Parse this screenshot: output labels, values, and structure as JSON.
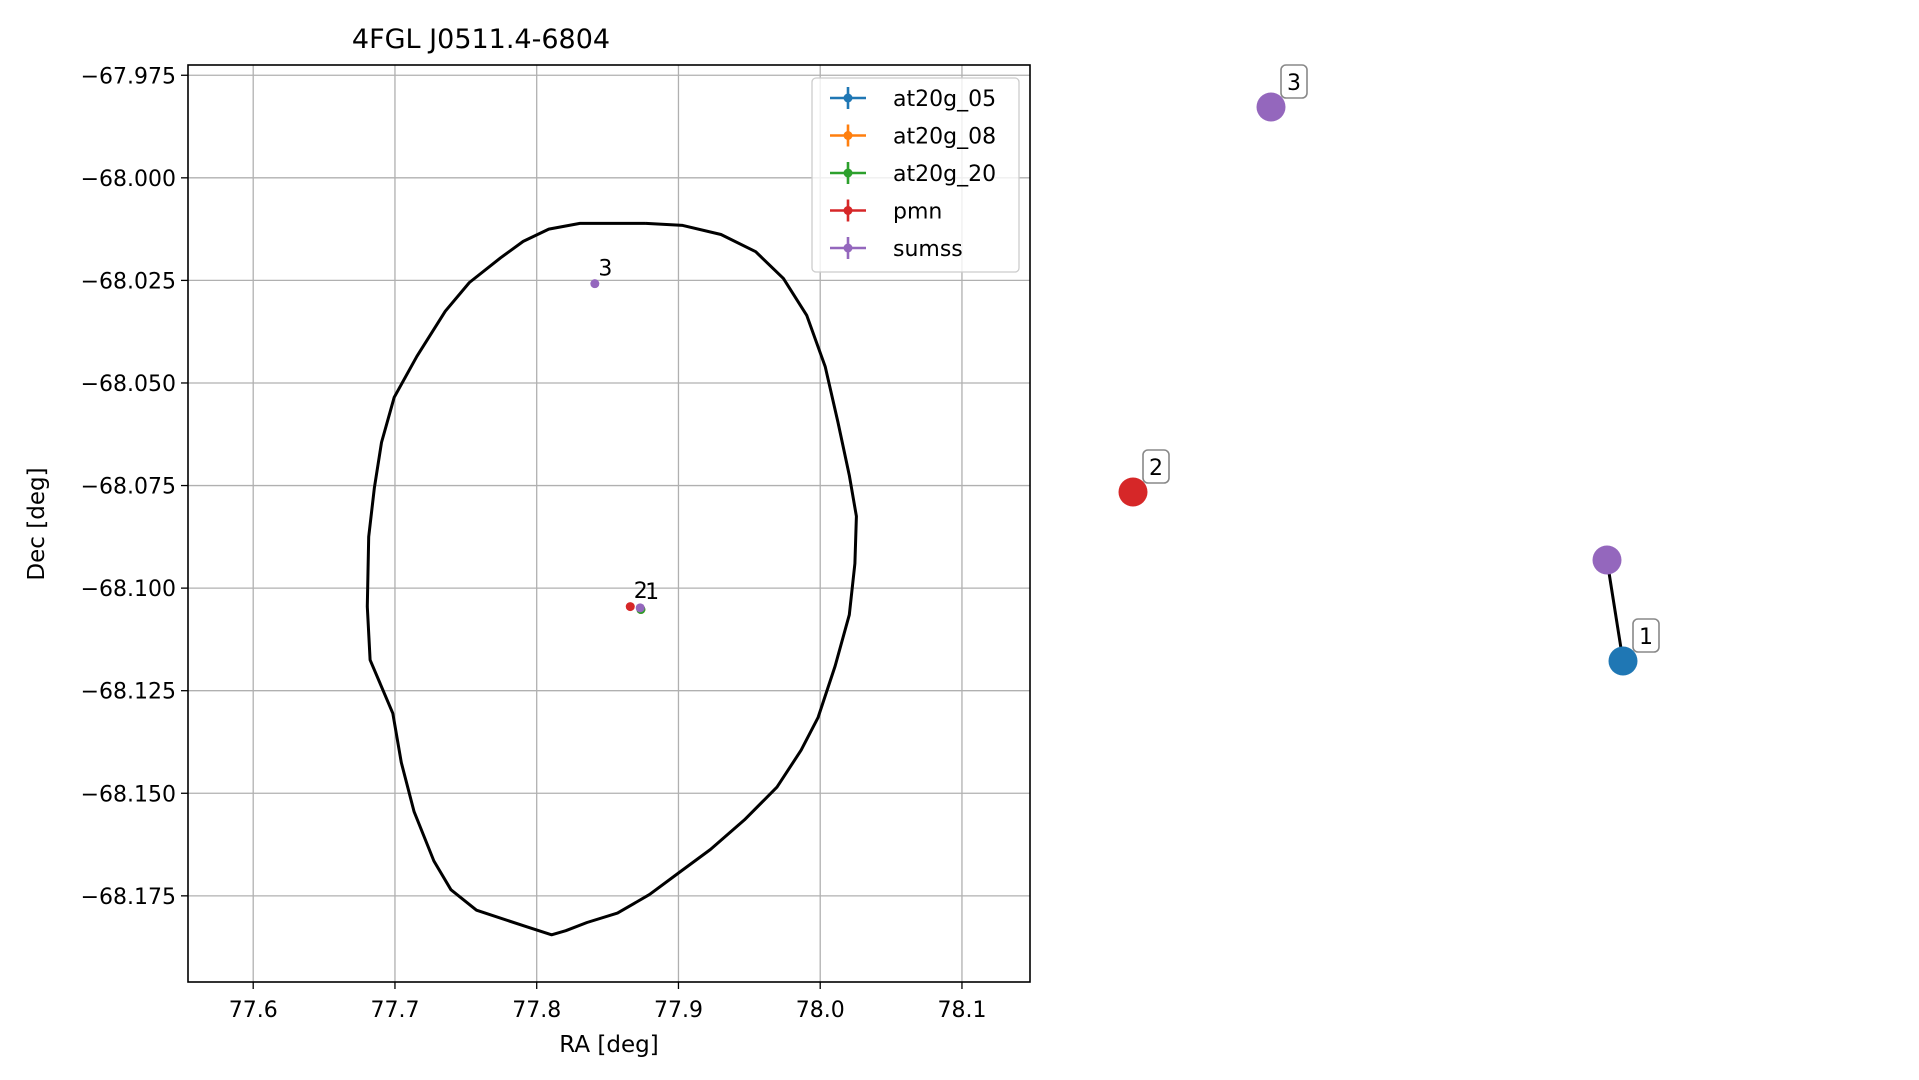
{
  "chart_data": [
    {
      "type": "scatter",
      "title": "4FGL J0511.4-6804",
      "xlabel": "RA [deg]",
      "ylabel": "Dec [deg]",
      "xlim": [
        77.554,
        78.148
      ],
      "ylim": [
        -68.196,
        -67.9725
      ],
      "xticks": [
        77.6,
        77.7,
        77.8,
        77.9,
        78.0,
        78.1
      ],
      "xtick_labels": [
        "77.6",
        "77.7",
        "77.8",
        "77.9",
        "78.0",
        "78.1"
      ],
      "yticks": [
        -67.975,
        -68.0,
        -68.025,
        -68.05,
        -68.075,
        -68.1,
        -68.125,
        -68.15,
        -68.175
      ],
      "ytick_labels": [
        "−67.975",
        "−68.000",
        "−68.025",
        "−68.050",
        "−68.075",
        "−68.100",
        "−68.125",
        "−68.150",
        "−68.175"
      ],
      "grid": true,
      "legend_position": "top-right",
      "series": [
        {
          "name": "at20g_05",
          "color": "#1f77b4",
          "points": [
            {
              "x": 77.8735,
              "y": -68.1052
            }
          ]
        },
        {
          "name": "at20g_08",
          "color": "#ff7f0e",
          "points": [
            {
              "x": 77.8735,
              "y": -68.1052
            }
          ]
        },
        {
          "name": "at20g_20",
          "color": "#2ca02c",
          "points": [
            {
              "x": 77.8735,
              "y": -68.1052
            }
          ]
        },
        {
          "name": "pmn",
          "color": "#d62728",
          "points": [
            {
              "x": 77.866,
              "y": -68.1045
            }
          ]
        },
        {
          "name": "sumss",
          "color": "#9467bd",
          "points": [
            {
              "x": 77.873,
              "y": -68.1048
            },
            {
              "x": 77.841,
              "y": -68.0258
            }
          ]
        }
      ],
      "annotations": [
        {
          "text": "1",
          "x": 77.8765,
          "y": -68.1026
        },
        {
          "text": "2",
          "x": 77.8685,
          "y": -68.1024
        },
        {
          "text": "3",
          "x": 77.8435,
          "y": -68.0238
        }
      ],
      "ellipse_outline": [
        [
          77.877,
          -68.0111
        ],
        [
          77.903,
          -68.0116
        ],
        [
          77.93,
          -68.0138
        ],
        [
          77.9545,
          -68.018
        ],
        [
          77.974,
          -68.0245
        ],
        [
          77.9905,
          -68.0335
        ],
        [
          78.0035,
          -68.046
        ],
        [
          78.0125,
          -68.0595
        ],
        [
          78.0205,
          -68.0725
        ],
        [
          78.0255,
          -68.0825
        ],
        [
          78.0245,
          -68.094
        ],
        [
          78.0205,
          -68.1065
        ],
        [
          78.0105,
          -68.119
        ],
        [
          77.9985,
          -68.1315
        ],
        [
          77.9865,
          -68.1395
        ],
        [
          77.9695,
          -68.1485
        ],
        [
          77.9465,
          -68.1565
        ],
        [
          77.9225,
          -68.1637
        ],
        [
          77.9005,
          -68.1693
        ],
        [
          77.8795,
          -68.1747
        ],
        [
          77.857,
          -68.1792
        ],
        [
          77.8355,
          -68.1815
        ],
        [
          77.8205,
          -68.1835
        ],
        [
          77.8105,
          -68.1845
        ],
        [
          77.7925,
          -68.1825
        ],
        [
          77.7575,
          -68.1785
        ],
        [
          77.7395,
          -68.1735
        ],
        [
          77.7275,
          -68.1665
        ],
        [
          77.7135,
          -68.1545
        ],
        [
          77.7045,
          -68.1425
        ],
        [
          77.6985,
          -68.1305
        ],
        [
          77.6825,
          -68.1175
        ],
        [
          77.6805,
          -68.1045
        ],
        [
          77.6815,
          -68.0875
        ],
        [
          77.6855,
          -68.0755
        ],
        [
          77.6905,
          -68.0645
        ],
        [
          77.6995,
          -68.0535
        ],
        [
          77.7155,
          -68.0435
        ],
        [
          77.7355,
          -68.0325
        ],
        [
          77.7525,
          -68.0255
        ],
        [
          77.7745,
          -68.0195
        ],
        [
          77.7905,
          -68.0155
        ],
        [
          77.8085,
          -68.0125
        ],
        [
          77.8305,
          -68.0111
        ],
        [
          77.877,
          -68.0111
        ]
      ]
    },
    {
      "type": "scatter",
      "nodes": [
        {
          "label": "3",
          "color": "#9467bd"
        },
        {
          "label": "2",
          "color": "#d62728"
        },
        {
          "label": "",
          "color": "#9467bd"
        },
        {
          "label": "1",
          "color": "#1f77b4"
        }
      ],
      "edges": [
        [
          2,
          3
        ]
      ]
    }
  ]
}
